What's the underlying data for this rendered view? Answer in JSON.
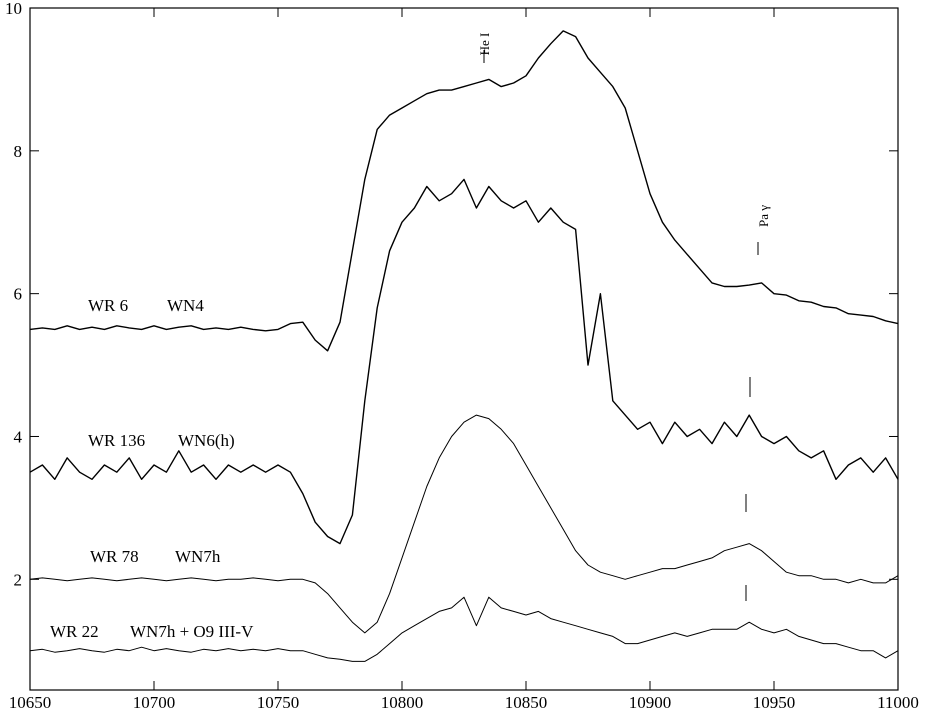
{
  "chart_data": {
    "type": "line",
    "x": [
      10650,
      10655,
      10660,
      10665,
      10670,
      10675,
      10680,
      10685,
      10690,
      10695,
      10700,
      10705,
      10710,
      10715,
      10720,
      10725,
      10730,
      10735,
      10740,
      10745,
      10750,
      10755,
      10760,
      10765,
      10770,
      10775,
      10780,
      10785,
      10790,
      10795,
      10800,
      10805,
      10810,
      10815,
      10820,
      10825,
      10830,
      10835,
      10840,
      10845,
      10850,
      10855,
      10860,
      10865,
      10870,
      10875,
      10880,
      10885,
      10890,
      10895,
      10900,
      10905,
      10910,
      10915,
      10920,
      10925,
      10930,
      10935,
      10940,
      10945,
      10950,
      10955,
      10960,
      10965,
      10970,
      10975,
      10980,
      10985,
      10990,
      10995,
      11000
    ],
    "series": [
      {
        "name": "WR 6",
        "subtype": "WN4",
        "color": "#000000",
        "values": [
          5.5,
          5.52,
          5.5,
          5.55,
          5.5,
          5.53,
          5.5,
          5.55,
          5.52,
          5.5,
          5.55,
          5.5,
          5.53,
          5.55,
          5.5,
          5.52,
          5.5,
          5.53,
          5.5,
          5.48,
          5.5,
          5.58,
          5.6,
          5.35,
          5.2,
          5.6,
          6.6,
          7.6,
          8.3,
          8.5,
          8.6,
          8.7,
          8.8,
          8.85,
          8.85,
          8.9,
          8.95,
          9.0,
          8.9,
          8.95,
          9.05,
          9.3,
          9.5,
          9.68,
          9.6,
          9.3,
          9.1,
          8.9,
          8.6,
          8.0,
          7.4,
          7.0,
          6.75,
          6.55,
          6.35,
          6.15,
          6.1,
          6.1,
          6.12,
          6.15,
          6.0,
          5.98,
          5.9,
          5.88,
          5.82,
          5.8,
          5.72,
          5.7,
          5.68,
          5.62,
          5.58
        ]
      },
      {
        "name": "WR 136",
        "subtype": "WN6(h)",
        "color": "#000000",
        "values": [
          3.5,
          3.6,
          3.4,
          3.7,
          3.5,
          3.4,
          3.6,
          3.5,
          3.7,
          3.4,
          3.6,
          3.5,
          3.8,
          3.5,
          3.6,
          3.4,
          3.6,
          3.5,
          3.6,
          3.5,
          3.6,
          3.5,
          3.2,
          2.8,
          2.6,
          2.5,
          2.9,
          4.5,
          5.8,
          6.6,
          7.0,
          7.2,
          7.5,
          7.3,
          7.4,
          7.6,
          7.2,
          7.5,
          7.3,
          7.2,
          7.3,
          7.0,
          7.2,
          7.0,
          6.9,
          5.0,
          6.0,
          4.5,
          4.3,
          4.1,
          4.2,
          3.9,
          4.2,
          4.0,
          4.1,
          3.9,
          4.2,
          4.0,
          4.3,
          4.0,
          3.9,
          4.0,
          3.8,
          3.7,
          3.8,
          3.4,
          3.6,
          3.7,
          3.5,
          3.7,
          3.4
        ]
      },
      {
        "name": "WR 78",
        "subtype": "WN7h",
        "color": "#000000",
        "values": [
          2.0,
          2.02,
          2.0,
          1.98,
          2.0,
          2.02,
          2.0,
          1.98,
          2.0,
          2.02,
          2.0,
          1.98,
          2.0,
          2.02,
          2.0,
          1.98,
          2.0,
          2.0,
          2.02,
          2.0,
          1.98,
          2.0,
          2.0,
          1.95,
          1.8,
          1.6,
          1.4,
          1.25,
          1.4,
          1.8,
          2.3,
          2.8,
          3.3,
          3.7,
          4.0,
          4.2,
          4.3,
          4.25,
          4.1,
          3.9,
          3.6,
          3.3,
          3.0,
          2.7,
          2.4,
          2.2,
          2.1,
          2.05,
          2.0,
          2.05,
          2.1,
          2.15,
          2.15,
          2.2,
          2.25,
          2.3,
          2.4,
          2.45,
          2.5,
          2.4,
          2.25,
          2.1,
          2.05,
          2.05,
          2.0,
          2.0,
          1.95,
          2.0,
          1.95,
          1.95,
          2.05
        ]
      },
      {
        "name": "WR 22",
        "subtype": "WN7h + O9 III-V",
        "color": "#000000",
        "values": [
          1.0,
          1.02,
          0.98,
          1.0,
          1.03,
          1.0,
          0.98,
          1.02,
          1.0,
          1.05,
          1.0,
          1.03,
          1.0,
          0.98,
          1.02,
          1.0,
          1.03,
          1.0,
          1.02,
          1.0,
          1.03,
          1.0,
          1.0,
          0.95,
          0.9,
          0.88,
          0.85,
          0.85,
          0.95,
          1.1,
          1.25,
          1.35,
          1.45,
          1.55,
          1.6,
          1.75,
          1.35,
          1.75,
          1.6,
          1.55,
          1.5,
          1.55,
          1.45,
          1.4,
          1.35,
          1.3,
          1.25,
          1.2,
          1.1,
          1.1,
          1.15,
          1.2,
          1.25,
          1.2,
          1.25,
          1.3,
          1.3,
          1.3,
          1.4,
          1.3,
          1.25,
          1.3,
          1.2,
          1.15,
          1.1,
          1.1,
          1.05,
          1.0,
          1.0,
          0.9,
          1.0
        ]
      }
    ],
    "annotations": [
      "He I",
      "Pa γ"
    ],
    "xlim": [
      10650,
      11000
    ],
    "ylim": [
      0.45,
      10
    ],
    "xticks": [
      10650,
      10700,
      10750,
      10800,
      10850,
      10900,
      10950,
      11000
    ],
    "yticks": [
      2,
      4,
      6,
      8,
      10
    ]
  }
}
